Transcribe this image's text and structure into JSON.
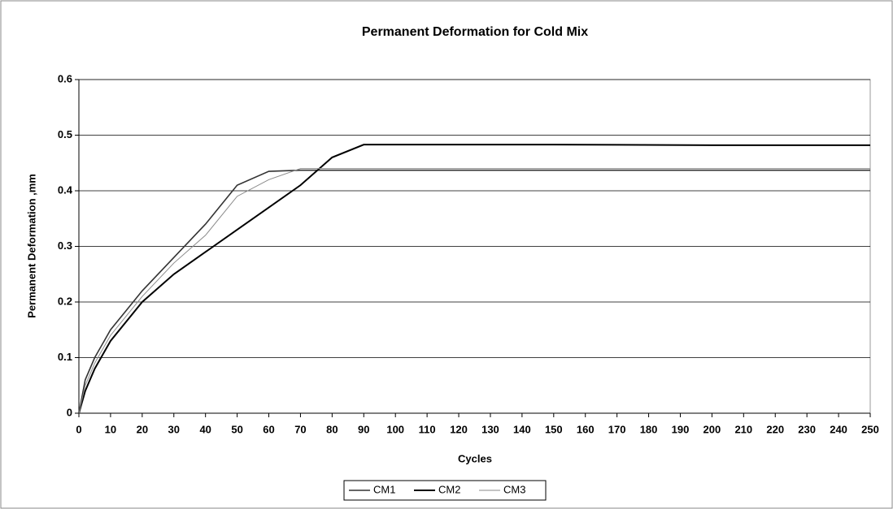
{
  "chart_data": {
    "type": "line",
    "title": "Permanent Deformation for Cold Mix",
    "xlabel": "Cycles",
    "ylabel": "Permanent Deformation ,mm",
    "x": [
      0,
      2,
      5,
      10,
      20,
      30,
      40,
      50,
      60,
      70,
      80,
      90,
      100,
      150,
      200,
      250
    ],
    "series": [
      {
        "name": "CM1",
        "color": "#333333",
        "values": [
          0,
          0.06,
          0.1,
          0.15,
          0.22,
          0.28,
          0.34,
          0.41,
          0.435,
          0.437,
          0.437,
          0.437,
          0.437,
          0.437,
          0.437,
          0.437
        ]
      },
      {
        "name": "CM2",
        "color": "#000000",
        "values": [
          0,
          0.04,
          0.08,
          0.13,
          0.2,
          0.25,
          0.29,
          0.33,
          0.37,
          0.41,
          0.46,
          0.483,
          0.483,
          0.483,
          0.482,
          0.482
        ]
      },
      {
        "name": "CM3",
        "color": "#8a8a8a",
        "values": [
          0,
          0.05,
          0.09,
          0.14,
          0.21,
          0.27,
          0.32,
          0.39,
          0.42,
          0.44,
          0.44,
          0.44,
          0.44,
          0.44,
          0.44,
          0.44
        ]
      }
    ],
    "xlim": [
      0,
      250
    ],
    "xticks": [
      0,
      10,
      20,
      30,
      40,
      50,
      60,
      70,
      80,
      90,
      100,
      110,
      120,
      130,
      140,
      150,
      160,
      170,
      180,
      190,
      200,
      210,
      220,
      230,
      240,
      250
    ],
    "ylim": [
      0,
      0.6
    ],
    "yticks": [
      0,
      0.1,
      0.2,
      0.3,
      0.4,
      0.5,
      0.6
    ],
    "grid": true,
    "legend": "bottom"
  }
}
